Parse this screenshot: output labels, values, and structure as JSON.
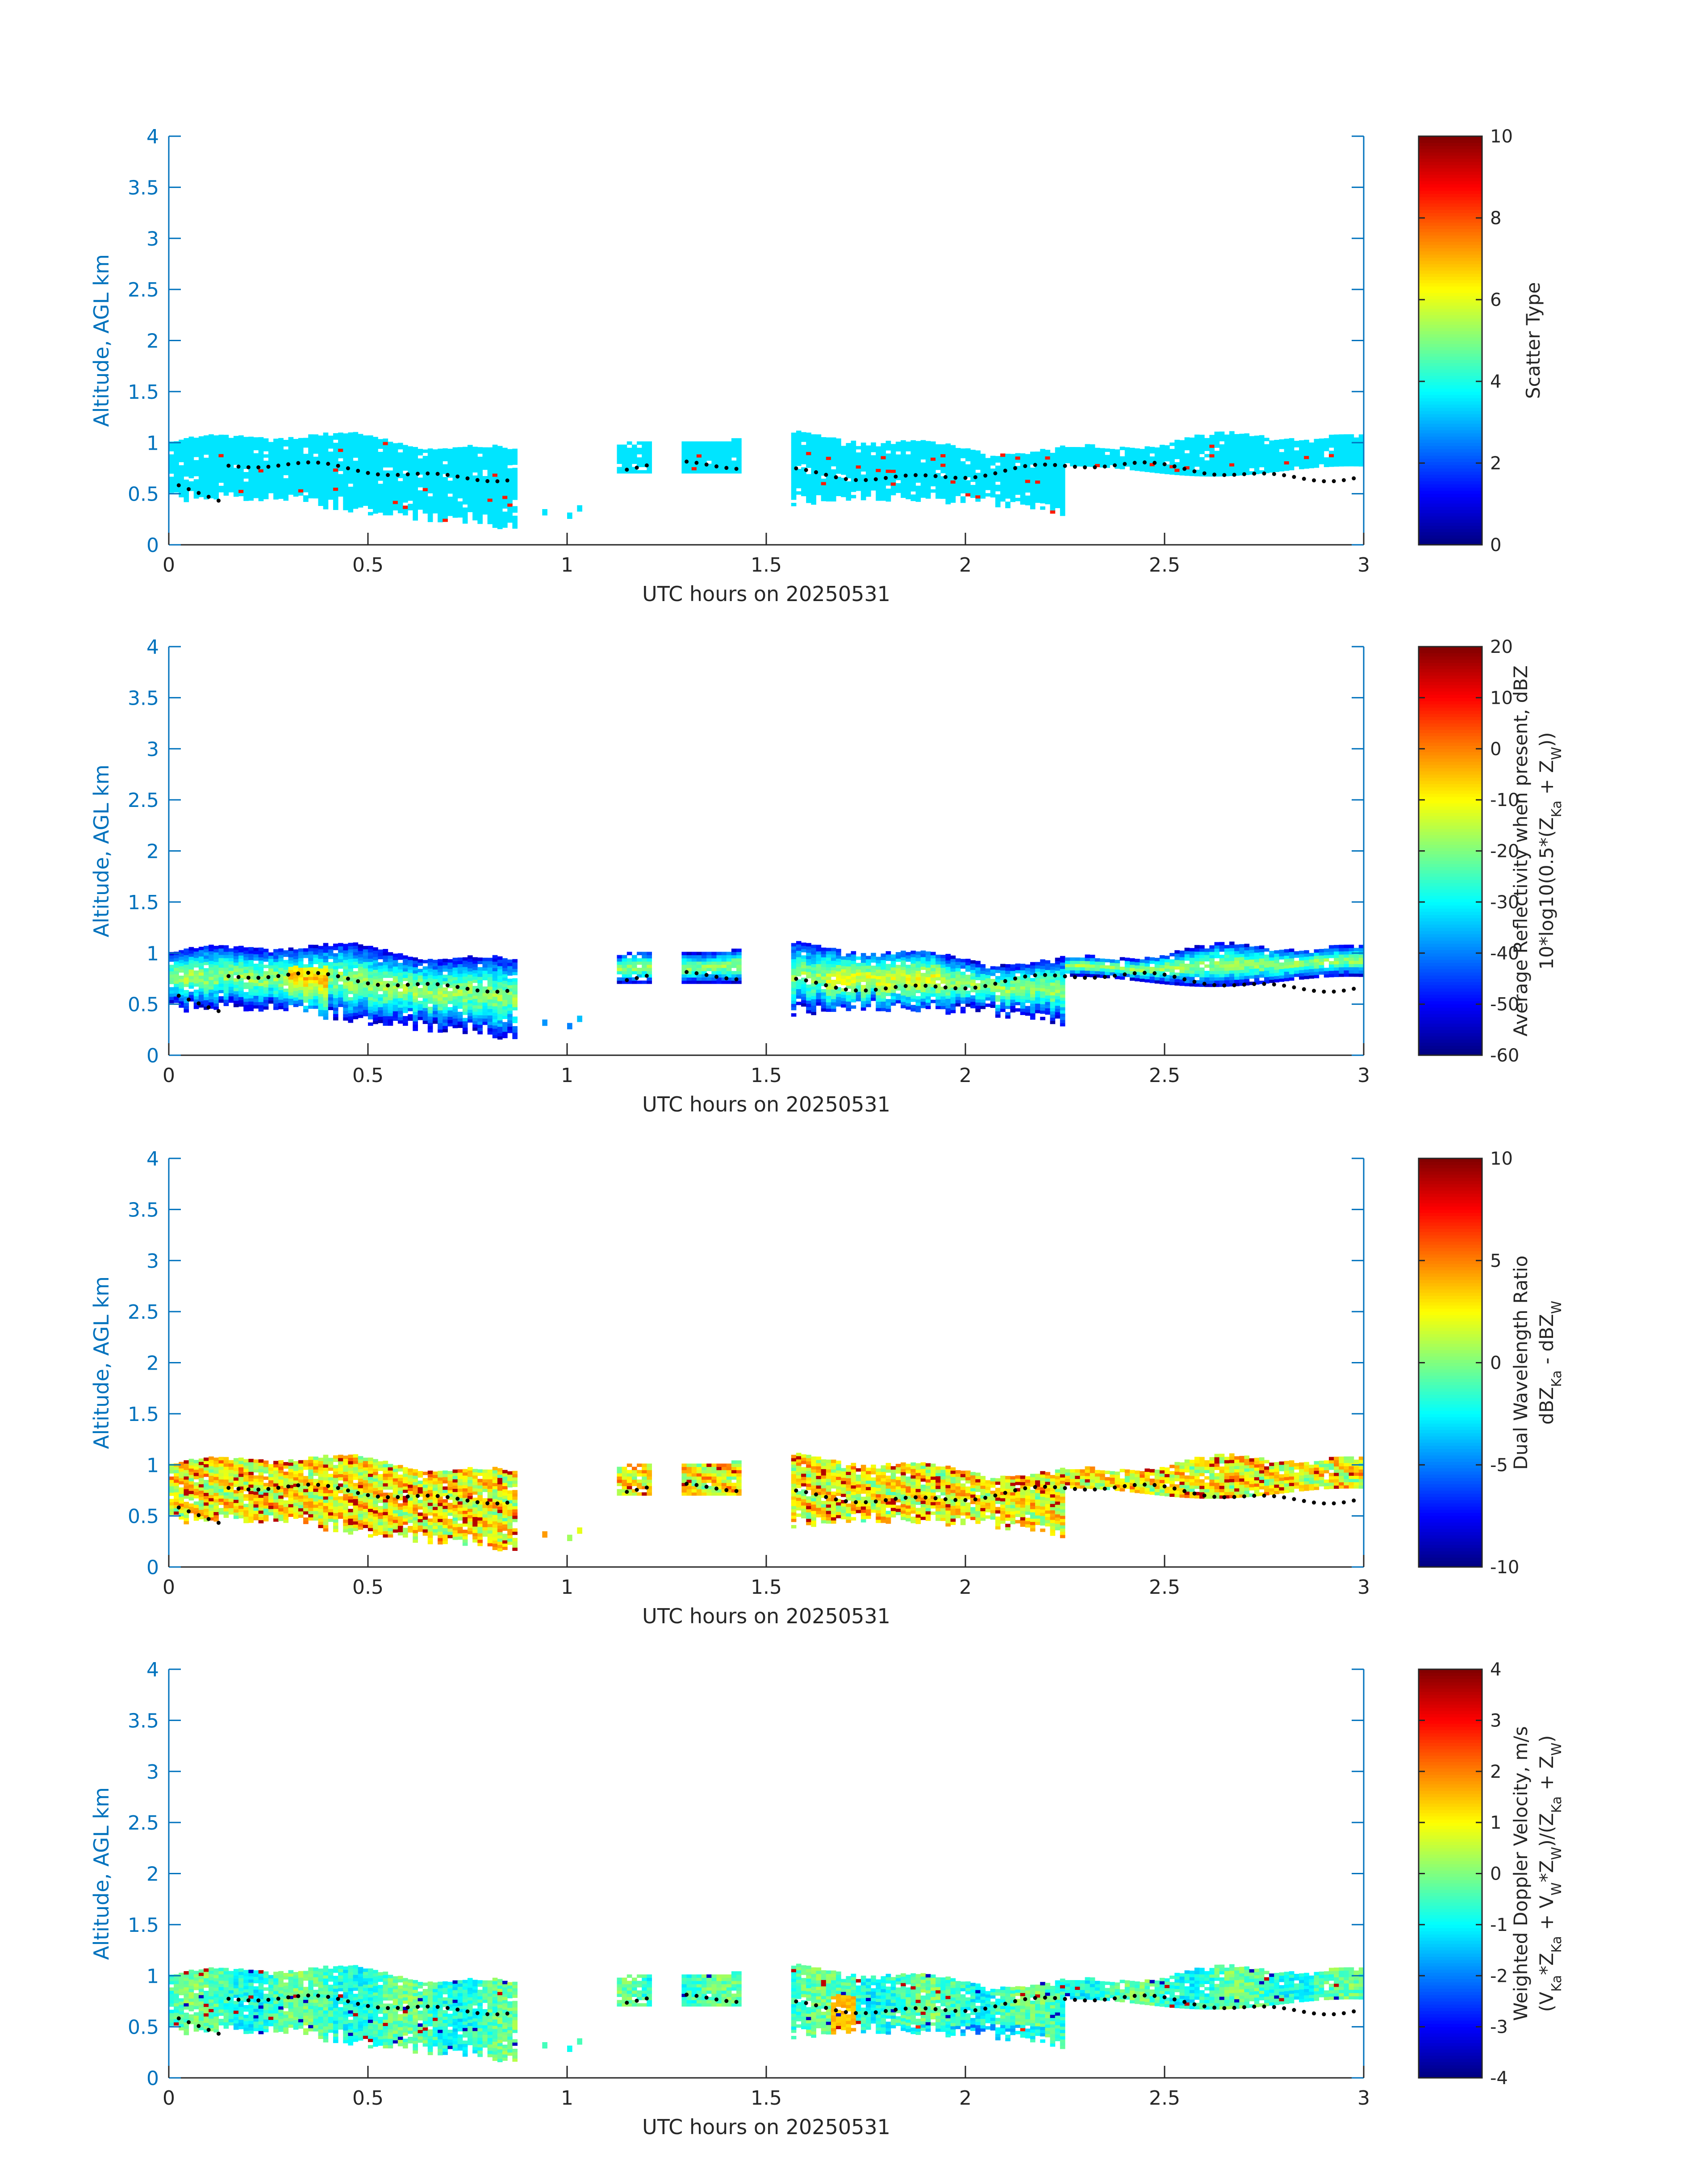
{
  "figure": {
    "colors": {
      "axis": "#0072BD",
      "text": "#262626",
      "dots": "#000000"
    }
  },
  "chart_data": [
    {
      "type": "heatmap",
      "panel": "scatter-type",
      "xlabel": "UTC hours on 20250531",
      "ylabel": "Altitude, AGL km",
      "xlim": [
        0,
        3
      ],
      "ylim": [
        0,
        4
      ],
      "xticks": [
        "0",
        "0.5",
        "1",
        "1.5",
        "2",
        "2.5",
        "3"
      ],
      "yticks": [
        "0",
        "0.5",
        "1",
        "1.5",
        "2",
        "2.5",
        "3",
        "3.5",
        "4"
      ],
      "grid": false,
      "colorbar": {
        "label_lines": [
          "Scatter Type"
        ],
        "range": [
          0,
          10
        ],
        "ticks": [
          "0",
          "2",
          "4",
          "6",
          "8",
          "10"
        ],
        "colormap": "jet"
      },
      "field": "scatter",
      "cloud_segments": [
        [
          0.0,
          0.87
        ],
        [
          1.13,
          1.21
        ],
        [
          1.29,
          1.44
        ],
        [
          1.56,
          3.0
        ]
      ],
      "cloud_base_km": 0.3,
      "cloud_top_km": 1.05,
      "typical_value": 3.5,
      "secondary_value": 8.5
    },
    {
      "type": "heatmap",
      "panel": "reflectivity",
      "xlabel": "UTC hours on 20250531",
      "ylabel": "Altitude, AGL km",
      "xlim": [
        0,
        3
      ],
      "ylim": [
        0,
        4
      ],
      "xticks": [
        "0",
        "0.5",
        "1",
        "1.5",
        "2",
        "2.5",
        "3"
      ],
      "yticks": [
        "0",
        "0.5",
        "1",
        "1.5",
        "2",
        "2.5",
        "3",
        "3.5",
        "4"
      ],
      "grid": false,
      "colorbar": {
        "label_lines": [
          "Average Reflectivity when present, dBZ",
          "10*log10(0.5*(Z_Ka + Z_W))"
        ],
        "range": [
          -60,
          20
        ],
        "ticks": [
          "-60",
          "-50",
          "-40",
          "-30",
          "-20",
          "-10",
          "0",
          "10",
          "20"
        ],
        "colormap": "jet"
      },
      "field": "reflectivity",
      "typical_range": [
        -45,
        -5
      ]
    },
    {
      "type": "heatmap",
      "panel": "dual-wavelength-ratio",
      "xlabel": "UTC hours on 20250531",
      "ylabel": "Altitude, AGL km",
      "xlim": [
        0,
        3
      ],
      "ylim": [
        0,
        4
      ],
      "xticks": [
        "0",
        "0.5",
        "1",
        "1.5",
        "2",
        "2.5",
        "3"
      ],
      "yticks": [
        "0",
        "0.5",
        "1",
        "1.5",
        "2",
        "2.5",
        "3",
        "3.5",
        "4"
      ],
      "grid": false,
      "colorbar": {
        "label_lines": [
          "Dual Wavelength Ratio",
          "dBZ_Ka - dBZ_W"
        ],
        "range": [
          -10,
          10
        ],
        "ticks": [
          "-10",
          "-5",
          "0",
          "5",
          "10"
        ],
        "colormap": "jet"
      },
      "field": "dwr",
      "typical_range": [
        1,
        6
      ]
    },
    {
      "type": "heatmap",
      "panel": "doppler-velocity",
      "xlabel": "UTC hours on 20250531",
      "ylabel": "Altitude, AGL km",
      "xlim": [
        0,
        3
      ],
      "ylim": [
        0,
        4
      ],
      "xticks": [
        "0",
        "0.5",
        "1",
        "1.5",
        "2",
        "2.5",
        "3"
      ],
      "yticks": [
        "0",
        "0.5",
        "1",
        "1.5",
        "2",
        "2.5",
        "3",
        "3.5",
        "4"
      ],
      "grid": false,
      "colorbar": {
        "label_lines": [
          "Weighted Doppler Velocity, m/s",
          "(V_Ka*Z_Ka + V_W*Z_W)/(Z_Ka + Z_W)"
        ],
        "range": [
          -4,
          4
        ],
        "ticks": [
          "-4",
          "-3",
          "-2",
          "-1",
          "0",
          "1",
          "2",
          "3",
          "4"
        ],
        "colormap": "jet"
      },
      "field": "velocity",
      "typical_range": [
        -1.2,
        0.8
      ]
    }
  ]
}
